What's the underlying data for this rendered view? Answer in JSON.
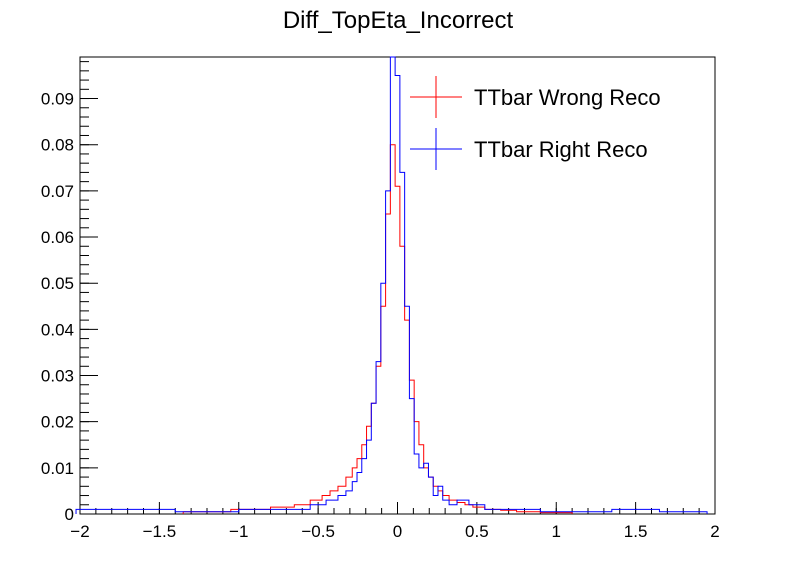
{
  "chart_data": {
    "type": "histogram",
    "title": "Diff_TopEta_Incorrect",
    "xlabel": "",
    "ylabel": "",
    "xlim": [
      -2,
      2
    ],
    "ylim": [
      0,
      0.099
    ],
    "x_ticks": [
      "−2",
      "−1.5",
      "−1",
      "−0.5",
      "0",
      "0.5",
      "1",
      "1.5",
      "2"
    ],
    "y_ticks": [
      "0",
      "0.01",
      "0.02",
      "0.03",
      "0.04",
      "0.05",
      "0.06",
      "0.07",
      "0.08",
      "0.09"
    ],
    "grid": false,
    "legend_position": "top-right",
    "series": [
      {
        "name": "TTbar Wrong Reco",
        "color": "#ff0000",
        "x": [
          -1.2,
          -0.9,
          -0.7,
          -0.6,
          -0.5,
          -0.45,
          -0.4,
          -0.35,
          -0.3,
          -0.27,
          -0.24,
          -0.21,
          -0.18,
          -0.15,
          -0.12,
          -0.09,
          -0.06,
          -0.03,
          0.0,
          0.03,
          0.06,
          0.09,
          0.12,
          0.15,
          0.18,
          0.21,
          0.24,
          0.27,
          0.3,
          0.35,
          0.4,
          0.45,
          0.5,
          0.6,
          0.7,
          0.8,
          1.0
        ],
        "values": [
          0.0005,
          0.001,
          0.0015,
          0.002,
          0.003,
          0.004,
          0.005,
          0.006,
          0.008,
          0.01,
          0.012,
          0.015,
          0.019,
          0.024,
          0.032,
          0.045,
          0.065,
          0.08,
          0.071,
          0.058,
          0.042,
          0.029,
          0.02,
          0.015,
          0.01,
          0.008,
          0.006,
          0.005,
          0.004,
          0.003,
          0.0025,
          0.002,
          0.0015,
          0.001,
          0.0008,
          0.0005,
          0.0003
        ]
      },
      {
        "name": "TTbar Right Reco",
        "color": "#0000ff",
        "x": [
          -1.95,
          -1.8,
          -1.6,
          -1.2,
          -0.8,
          -0.6,
          -0.5,
          -0.4,
          -0.35,
          -0.3,
          -0.27,
          -0.24,
          -0.21,
          -0.18,
          -0.15,
          -0.12,
          -0.09,
          -0.06,
          -0.03,
          0.0,
          0.03,
          0.06,
          0.09,
          0.12,
          0.15,
          0.18,
          0.21,
          0.24,
          0.27,
          0.3,
          0.35,
          0.4,
          0.5,
          0.6,
          0.8,
          1.0,
          1.2,
          1.5,
          1.8
        ],
        "values": [
          0.001,
          0.001,
          0.001,
          0.0005,
          0.001,
          0.001,
          0.002,
          0.003,
          0.004,
          0.005,
          0.007,
          0.009,
          0.012,
          0.016,
          0.024,
          0.033,
          0.05,
          0.07,
          0.099,
          0.095,
          0.074,
          0.045,
          0.025,
          0.013,
          0.01,
          0.011,
          0.008,
          0.004,
          0.006,
          0.003,
          0.002,
          0.003,
          0.002,
          0.001,
          0.001,
          0.0005,
          0.0005,
          0.001,
          0.0005
        ]
      }
    ]
  }
}
